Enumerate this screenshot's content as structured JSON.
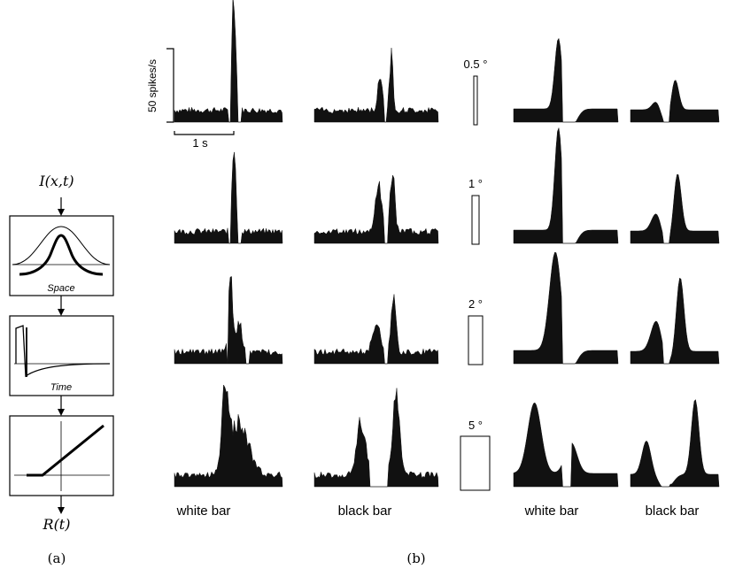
{
  "model": {
    "input_label": "I(x,t)",
    "output_label": "R(t)",
    "space_label": "Space",
    "time_label": "Time",
    "panel_label": "(a)"
  },
  "figure": {
    "panel_label": "(b)",
    "scale_rate": "50 spikes/s",
    "scale_time": "1 s",
    "bar_widths": [
      "0.5 °",
      "1 °",
      "2 °",
      "5 °"
    ],
    "bar_width_degrees": [
      0.5,
      1,
      2,
      5
    ],
    "column_labels": [
      "white bar",
      "black bar",
      "white bar",
      "black bar"
    ]
  }
}
